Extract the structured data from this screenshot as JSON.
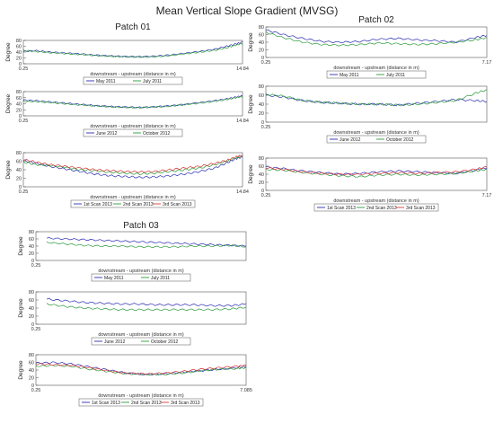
{
  "figure_title": "Mean Vertical Slope Gradient (MVSG)",
  "colors": {
    "blue": "#2b2bb3",
    "green": "#2a9a3a",
    "red": "#d83a3a",
    "frame": "#555555"
  },
  "chart_data": [
    {
      "id": "p01a",
      "type": "line",
      "title": "Patch 01",
      "ylabel": "Degree",
      "xlabel": "downstream - upstream (distance in m)",
      "xlim": [
        0.25,
        14.84
      ],
      "xticklabels": [
        "0.25",
        "14.84"
      ],
      "ylim": [
        0,
        80
      ],
      "yticks": [
        0,
        20,
        40,
        60,
        80
      ],
      "series": [
        {
          "name": "May 2011",
          "color": "#2b2bb3",
          "x": [
            0.25,
            1.1,
            2,
            3,
            4,
            5,
            6,
            7,
            8,
            9,
            10,
            11,
            12,
            13,
            13.8,
            14.4,
            14.84
          ],
          "y": [
            42,
            45,
            40,
            37,
            34,
            30,
            27,
            25,
            24,
            26,
            30,
            36,
            42,
            50,
            60,
            68,
            74
          ]
        },
        {
          "name": "July 2011",
          "color": "#2a9a3a",
          "x": [
            0.25,
            1.1,
            2,
            3,
            4,
            5,
            6,
            7,
            8,
            9,
            10,
            11,
            12,
            13,
            13.8,
            14.4,
            14.84
          ],
          "y": [
            46,
            42,
            38,
            35,
            32,
            28,
            26,
            24,
            23,
            24,
            28,
            34,
            40,
            46,
            55,
            64,
            70
          ]
        }
      ],
      "legend": {
        "placement": "bottom",
        "columns": 2
      }
    },
    {
      "id": "p01b",
      "type": "line",
      "ylabel": "Degree",
      "xlabel": "downstream - upstream (distance in m)",
      "xlim": [
        0.25,
        14.84
      ],
      "xticklabels": [
        "0.25",
        "14.84"
      ],
      "ylim": [
        0,
        80
      ],
      "yticks": [
        0,
        20,
        40,
        60,
        80
      ],
      "series": [
        {
          "name": "June 2012",
          "color": "#2b2bb3",
          "x": [
            0.25,
            1.1,
            2,
            3,
            4,
            5,
            6,
            7,
            8,
            9,
            10,
            11,
            12,
            13,
            13.8,
            14.4,
            14.84
          ],
          "y": [
            52,
            50,
            46,
            42,
            38,
            34,
            31,
            29,
            28,
            30,
            33,
            38,
            44,
            50,
            56,
            62,
            66
          ]
        },
        {
          "name": "October 2012",
          "color": "#2a9a3a",
          "x": [
            0.25,
            1.1,
            2,
            3,
            4,
            5,
            6,
            7,
            8,
            9,
            10,
            11,
            12,
            13,
            13.8,
            14.4,
            14.84
          ],
          "y": [
            48,
            47,
            44,
            40,
            36,
            33,
            30,
            28,
            27,
            29,
            32,
            37,
            42,
            48,
            54,
            60,
            64
          ]
        }
      ],
      "legend": {
        "placement": "bottom",
        "columns": 2
      }
    },
    {
      "id": "p01c",
      "type": "line",
      "ylabel": "Degree",
      "xlabel": "downstream - upstream (distance in m)",
      "xlim": [
        0.25,
        14.84
      ],
      "xticklabels": [
        "0.25",
        "14.84"
      ],
      "ylim": [
        0,
        80
      ],
      "yticks": [
        0,
        20,
        40,
        60,
        80
      ],
      "series": [
        {
          "name": "1st Scan 2013",
          "color": "#2b2bb3",
          "x": [
            0.25,
            1.1,
            2,
            3,
            4,
            5,
            6,
            7,
            8,
            9,
            10,
            11,
            12,
            13,
            13.8,
            14.4,
            14.84
          ],
          "y": [
            62,
            55,
            48,
            42,
            36,
            30,
            26,
            24,
            22,
            23,
            26,
            30,
            36,
            44,
            56,
            66,
            70
          ]
        },
        {
          "name": "2nd Scan 2013",
          "color": "#2a9a3a",
          "x": [
            0.25,
            1.1,
            2,
            3,
            4,
            5,
            6,
            7,
            8,
            9,
            10,
            11,
            12,
            13,
            13.8,
            14.4,
            14.84
          ],
          "y": [
            58,
            52,
            50,
            46,
            40,
            38,
            34,
            32,
            30,
            32,
            36,
            40,
            44,
            52,
            60,
            68,
            72
          ]
        },
        {
          "name": "3rd Scan 2013",
          "color": "#d83a3a",
          "x": [
            0.25,
            1.1,
            2,
            3,
            4,
            5,
            6,
            7,
            8,
            9,
            10,
            11,
            12,
            13,
            13.8,
            14.4,
            14.84
          ],
          "y": [
            64,
            58,
            52,
            48,
            44,
            40,
            38,
            36,
            35,
            36,
            40,
            44,
            48,
            55,
            62,
            70,
            74
          ]
        }
      ],
      "legend": {
        "placement": "bottom",
        "columns": 3
      }
    },
    {
      "id": "p02a",
      "type": "line",
      "title": "Patch 02",
      "ylabel": "Degree",
      "xlabel": "downstream - upstream (distance in m)",
      "xlim": [
        0.25,
        7.17
      ],
      "xticklabels": [
        "0.25",
        "7.17"
      ],
      "ylim": [
        0,
        80
      ],
      "yticks": [
        0,
        20,
        40,
        60,
        80
      ],
      "series": [
        {
          "name": "May 2011",
          "color": "#2b2bb3",
          "x": [
            0.25,
            0.8,
            1.4,
            2,
            2.6,
            3.2,
            3.8,
            4.4,
            5,
            5.6,
            6.2,
            6.8,
            7.17
          ],
          "y": [
            72,
            60,
            50,
            42,
            40,
            42,
            48,
            50,
            46,
            44,
            40,
            52,
            58
          ]
        },
        {
          "name": "July 2011",
          "color": "#2a9a3a",
          "x": [
            0.25,
            0.8,
            1.4,
            2,
            2.6,
            3.2,
            3.8,
            4.4,
            5,
            5.6,
            6.2,
            6.8,
            7.17
          ],
          "y": [
            66,
            52,
            40,
            34,
            32,
            34,
            38,
            36,
            34,
            36,
            40,
            46,
            52
          ]
        }
      ],
      "legend": {
        "placement": "bottom",
        "columns": 2
      }
    },
    {
      "id": "p02b",
      "type": "line",
      "ylabel": "Degree",
      "xlabel": "downstream - upstream (distance in m)",
      "xlim": [
        0.25,
        7.17
      ],
      "xticklabels": [
        "0.25",
        ""
      ],
      "ylim": [
        0,
        80
      ],
      "yticks": [
        0,
        20,
        40,
        60,
        80
      ],
      "series": [
        {
          "name": "June 2012",
          "color": "#2b2bb3",
          "x": [
            0.25,
            0.8,
            1.4,
            2,
            2.6,
            3.2,
            3.8,
            4.4,
            5,
            5.6,
            6.2,
            6.8,
            7.17
          ],
          "y": [
            60,
            56,
            48,
            44,
            42,
            40,
            40,
            38,
            42,
            46,
            50,
            48,
            46
          ]
        },
        {
          "name": "October 2012",
          "color": "#2a9a3a",
          "x": [
            0.25,
            0.8,
            1.4,
            2,
            2.6,
            3.2,
            3.8,
            4.4,
            5,
            5.6,
            6.2,
            6.8,
            7.17
          ],
          "y": [
            62,
            58,
            48,
            44,
            42,
            40,
            40,
            38,
            40,
            44,
            48,
            64,
            72
          ]
        }
      ],
      "legend": {
        "placement": "bottom",
        "columns": 2
      }
    },
    {
      "id": "p02c",
      "type": "line",
      "ylabel": "Degree",
      "xlabel": "downstream - upstream (distance in m)",
      "xlim": [
        0.25,
        7.17
      ],
      "xticklabels": [
        "0.25",
        "7.17"
      ],
      "ylim": [
        0,
        80
      ],
      "yticks": [
        0,
        20,
        40,
        60,
        80
      ],
      "series": [
        {
          "name": "1st Scan 2013",
          "color": "#2b2bb3",
          "x": [
            0.25,
            0.8,
            1.4,
            2,
            2.6,
            3.2,
            3.8,
            4.4,
            5,
            5.6,
            6.2,
            6.8,
            7.17
          ],
          "y": [
            58,
            54,
            48,
            44,
            40,
            42,
            46,
            48,
            46,
            44,
            42,
            50,
            56
          ]
        },
        {
          "name": "2nd Scan 2013",
          "color": "#2a9a3a",
          "x": [
            0.25,
            0.8,
            1.4,
            2,
            2.6,
            3.2,
            3.8,
            4.4,
            5,
            5.6,
            6.2,
            6.8,
            7.17
          ],
          "y": [
            52,
            50,
            44,
            40,
            36,
            34,
            38,
            40,
            38,
            40,
            42,
            48,
            52
          ]
        },
        {
          "name": "3rd Scan 2013",
          "color": "#d83a3a",
          "x": [
            0.25,
            0.8,
            1.4,
            2,
            2.6,
            3.2,
            3.8,
            4.4,
            5,
            5.6,
            6.2,
            6.8,
            7.17
          ],
          "y": [
            56,
            52,
            46,
            42,
            40,
            40,
            42,
            44,
            42,
            44,
            46,
            52,
            58
          ]
        }
      ],
      "legend": {
        "placement": "bottom",
        "columns": 3
      }
    },
    {
      "id": "p03a",
      "type": "line",
      "title": "Patch 03",
      "ylabel": "Degree",
      "xlabel": "downstream - upstream (distance in m)",
      "xlim": [
        0.25,
        7.085
      ],
      "xticklabels": [
        "0.25",
        ""
      ],
      "ylim": [
        0,
        80
      ],
      "yticks": [
        0,
        20,
        40,
        60,
        80
      ],
      "series": [
        {
          "name": "May 2011",
          "color": "#2b2bb3",
          "x": [
            0.6,
            1.2,
            1.8,
            2.4,
            3,
            3.6,
            4.2,
            4.8,
            5.4,
            6,
            6.6,
            7.085
          ],
          "y": [
            62,
            60,
            58,
            56,
            54,
            52,
            50,
            48,
            46,
            44,
            42,
            40
          ]
        },
        {
          "name": "July 2011",
          "color": "#2a9a3a",
          "x": [
            0.6,
            1.2,
            1.8,
            2.4,
            3,
            3.6,
            4.2,
            4.8,
            5.4,
            6,
            6.6,
            7.085
          ],
          "y": [
            50,
            46,
            42,
            40,
            40,
            38,
            38,
            38,
            40,
            40,
            42,
            38
          ]
        }
      ],
      "legend": {
        "placement": "bottom",
        "columns": 2
      }
    },
    {
      "id": "p03b",
      "type": "line",
      "ylabel": "Degree",
      "xlabel": "downstream - upstream (distance in m)",
      "xlim": [
        0.25,
        7.085
      ],
      "xticklabels": [
        "0.25",
        ""
      ],
      "ylim": [
        0,
        80
      ],
      "yticks": [
        0,
        20,
        40,
        60,
        80
      ],
      "series": [
        {
          "name": "June 2012",
          "color": "#2b2bb3",
          "x": [
            0.6,
            1.2,
            1.8,
            2.4,
            3,
            3.6,
            4.2,
            4.8,
            5.4,
            6,
            6.6,
            7.085
          ],
          "y": [
            62,
            58,
            54,
            52,
            50,
            50,
            48,
            48,
            48,
            46,
            46,
            50
          ]
        },
        {
          "name": "October 2012",
          "color": "#2a9a3a",
          "x": [
            0.6,
            1.2,
            1.8,
            2.4,
            3,
            3.6,
            4.2,
            4.8,
            5.4,
            6,
            6.6,
            7.085
          ],
          "y": [
            50,
            44,
            40,
            38,
            36,
            36,
            36,
            36,
            36,
            36,
            38,
            42
          ]
        }
      ],
      "legend": {
        "placement": "bottom",
        "columns": 2
      }
    },
    {
      "id": "p03c",
      "type": "line",
      "ylabel": "Degree",
      "xlabel": "downstream - upstream (distance in m)",
      "xlim": [
        0.25,
        7.085
      ],
      "xticklabels": [
        "0.25",
        "7.085"
      ],
      "ylim": [
        0,
        80
      ],
      "yticks": [
        0,
        20,
        40,
        60,
        80
      ],
      "series": [
        {
          "name": "1st Scan 2013",
          "color": "#2b2bb3",
          "x": [
            0.25,
            0.8,
            1.4,
            2,
            2.6,
            3.2,
            3.8,
            4.4,
            5,
            5.6,
            6.2,
            6.8,
            7.085
          ],
          "y": [
            58,
            60,
            56,
            48,
            40,
            32,
            28,
            30,
            34,
            38,
            42,
            46,
            50
          ]
        },
        {
          "name": "2nd Scan 2013",
          "color": "#2a9a3a",
          "x": [
            0.25,
            0.8,
            1.4,
            2,
            2.6,
            3.2,
            3.8,
            4.4,
            5,
            5.6,
            6.2,
            6.8,
            7.085
          ],
          "y": [
            50,
            52,
            50,
            42,
            36,
            30,
            28,
            28,
            32,
            38,
            42,
            44,
            46
          ]
        },
        {
          "name": "3rd Scan 2013",
          "color": "#d83a3a",
          "x": [
            0.25,
            0.8,
            1.4,
            2,
            2.6,
            3.2,
            3.8,
            4.4,
            5,
            5.6,
            6.2,
            6.8,
            7.085
          ],
          "y": [
            56,
            54,
            52,
            46,
            38,
            32,
            30,
            32,
            36,
            42,
            46,
            50,
            52
          ]
        }
      ],
      "legend": {
        "placement": "bottom",
        "columns": 3
      }
    }
  ]
}
